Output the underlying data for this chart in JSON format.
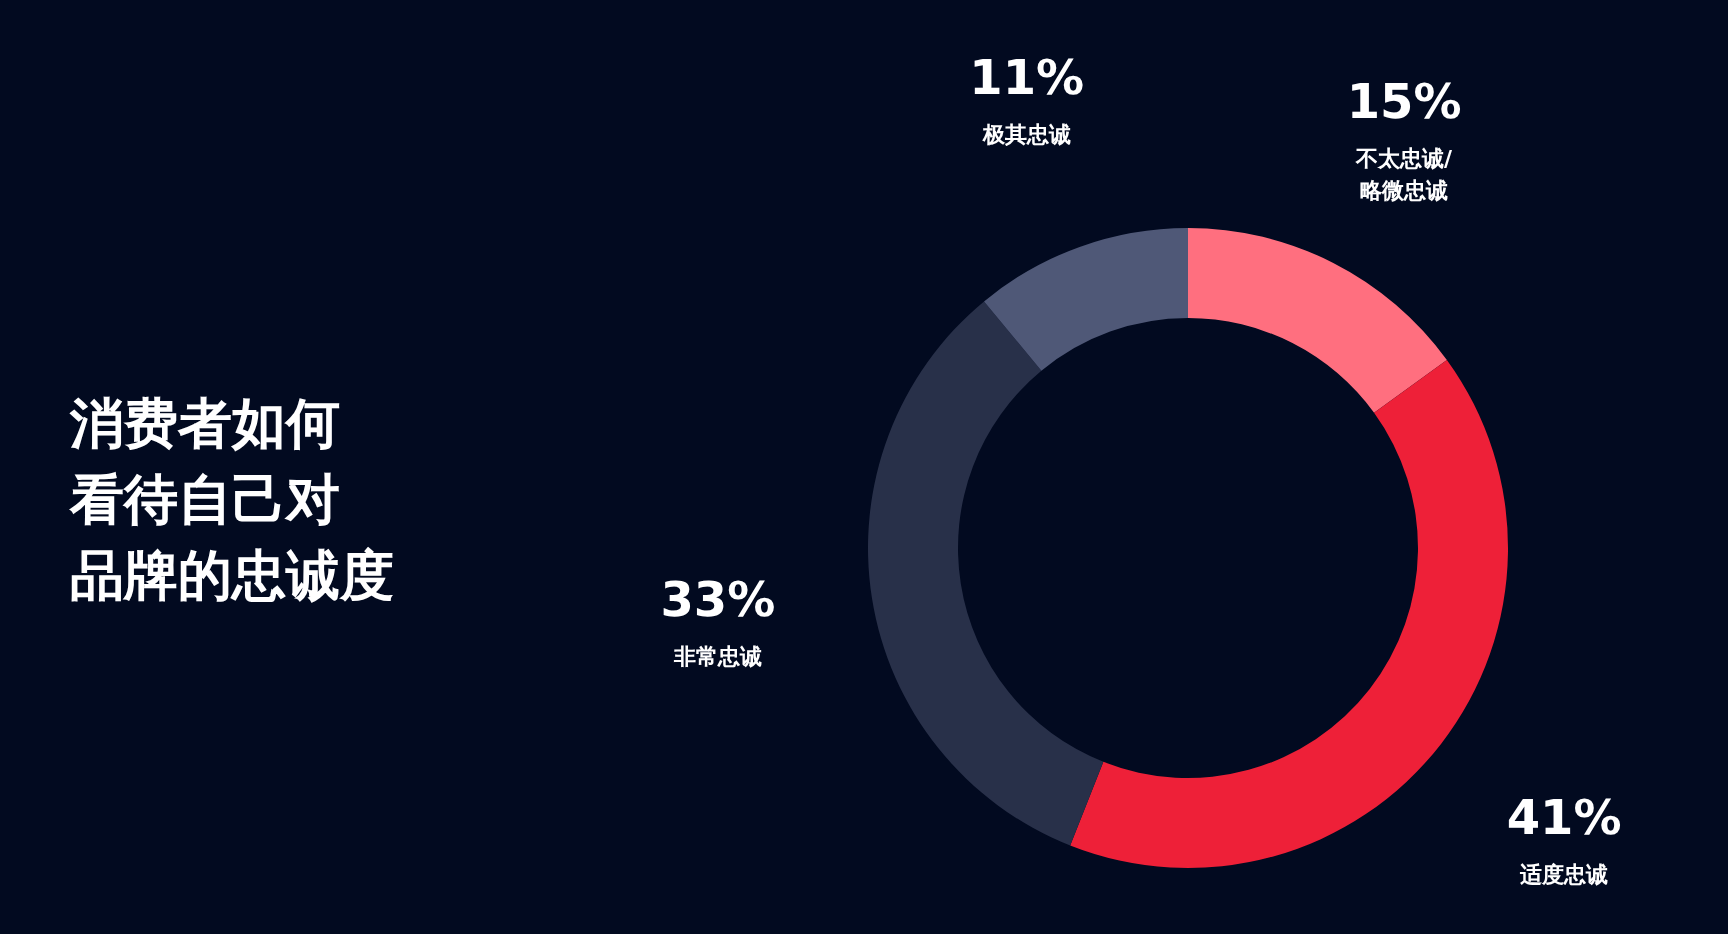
{
  "chart_data": {
    "type": "donut",
    "title": "消费者如何看待自己对品牌的忠诚度",
    "categories": [
      "不太忠诚/略微忠诚",
      "适度忠诚",
      "非常忠诚",
      "极其忠诚"
    ],
    "values": [
      15,
      41,
      33,
      11
    ],
    "value_labels": [
      "15%",
      "41%",
      "33%",
      "11%"
    ],
    "colors": [
      "#ff6f7f",
      "#ee2038",
      "#283049",
      "#4f5877"
    ]
  }
}
